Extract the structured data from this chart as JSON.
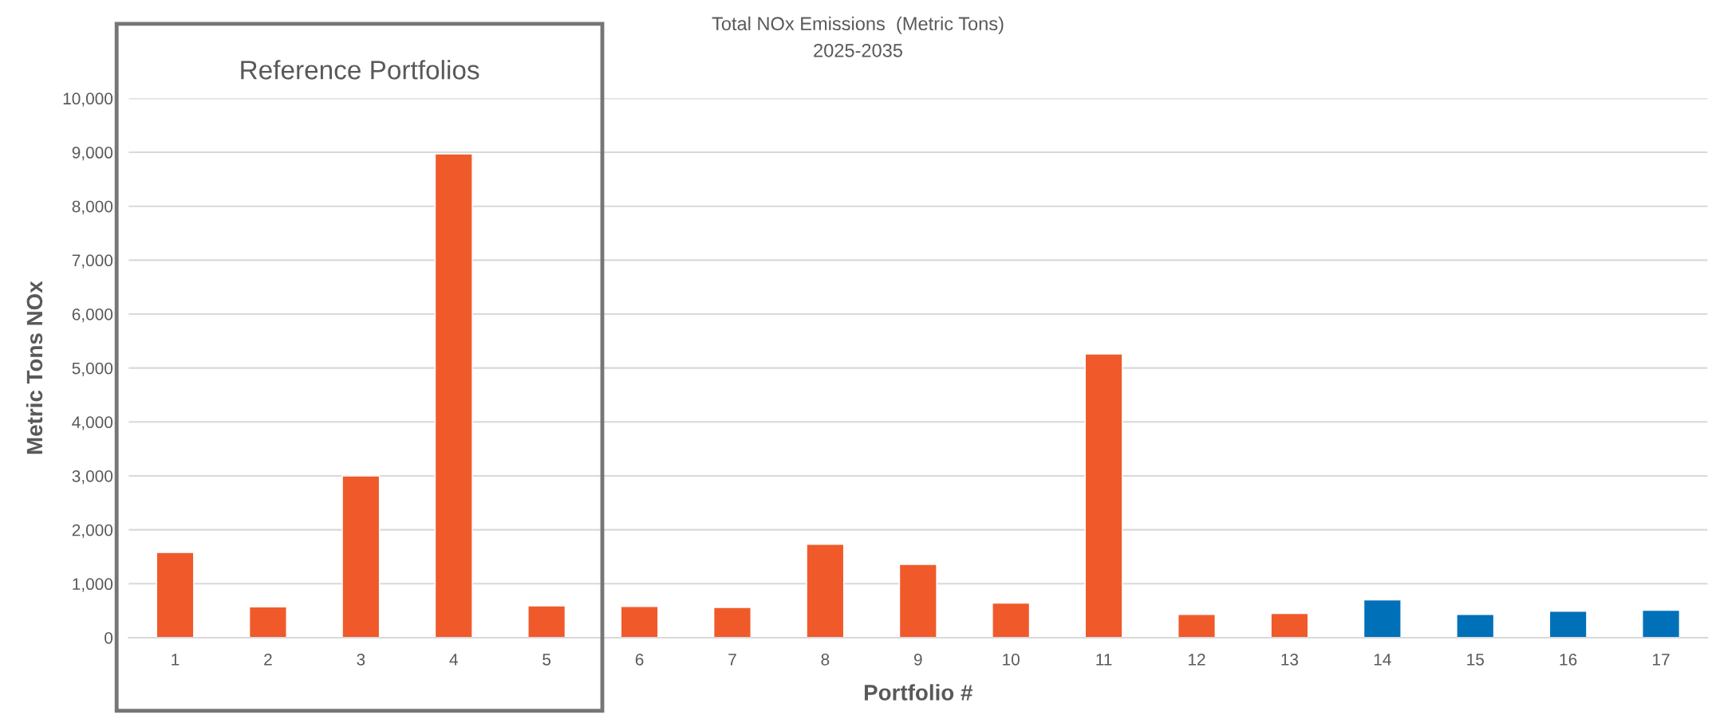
{
  "chart_data": {
    "type": "bar",
    "title": "Total NOx Emissions  (Metric Tons)",
    "subtitle": "2025-2035",
    "xlabel": "Portfolio #",
    "ylabel": "Metric Tons NOx",
    "categories": [
      "1",
      "2",
      "3",
      "4",
      "5",
      "6",
      "7",
      "8",
      "9",
      "10",
      "11",
      "12",
      "13",
      "14",
      "15",
      "16",
      "17"
    ],
    "values": [
      1580,
      570,
      3000,
      8970,
      590,
      580,
      560,
      1730,
      1360,
      640,
      5260,
      430,
      450,
      700,
      430,
      490,
      510
    ],
    "colors": [
      "#f05a2b",
      "#f05a2b",
      "#f05a2b",
      "#f05a2b",
      "#f05a2b",
      "#f05a2b",
      "#f05a2b",
      "#f05a2b",
      "#f05a2b",
      "#f05a2b",
      "#f05a2b",
      "#f05a2b",
      "#f05a2b",
      "#0070b8",
      "#0070b8",
      "#0070b8",
      "#0070b8"
    ],
    "ylim": [
      0,
      10000
    ],
    "yticks": [
      0,
      {
        "value": 1000,
        "label": "1,000"
      },
      {
        "value": 2000,
        "label": "2,000"
      },
      {
        "value": 3000,
        "label": "3,000"
      },
      {
        "value": 4000,
        "label": "4,000"
      },
      {
        "value": 5000,
        "label": "5,000"
      },
      {
        "value": 6000,
        "label": "6,000"
      },
      {
        "value": 7000,
        "label": "7,000"
      },
      {
        "value": 8000,
        "label": "8,000"
      },
      {
        "value": 9000,
        "label": "9,000"
      },
      {
        "value": 10000,
        "label": "10,000"
      }
    ],
    "grid": "y",
    "annotations": [
      "Reference Portfolios"
    ]
  }
}
